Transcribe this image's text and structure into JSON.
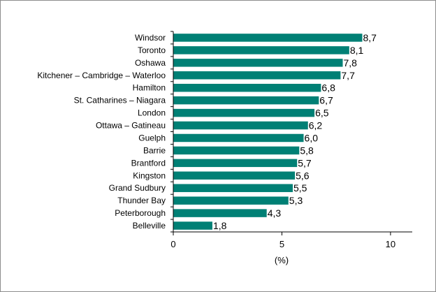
{
  "chart_data": {
    "type": "bar",
    "orientation": "horizontal",
    "categories": [
      "Windsor",
      "Toronto",
      "Oshawa",
      "Kitchener – Cambridge – Waterloo",
      "Hamilton",
      "St. Catharines – Niagara",
      "London",
      "Ottawa – Gatineau",
      "Guelph",
      "Barrie",
      "Brantford",
      "Kingston",
      "Grand Sudbury",
      "Thunder Bay",
      "Peterborough",
      "Belleville"
    ],
    "values": [
      8.7,
      8.1,
      7.8,
      7.7,
      6.8,
      6.7,
      6.5,
      6.2,
      6.0,
      5.8,
      5.7,
      5.6,
      5.5,
      5.3,
      4.3,
      1.8
    ],
    "value_labels": [
      "8,7",
      "8,1",
      "7,8",
      "7,7",
      "6,8",
      "6,7",
      "6,5",
      "6,2",
      "6,0",
      "5,8",
      "5,7",
      "5,6",
      "5,5",
      "5,3",
      "4,3",
      "1,8"
    ],
    "xticks": [
      0,
      5,
      10
    ],
    "xtick_labels": [
      "0",
      "5",
      "10"
    ],
    "xlabel": "(%)",
    "xlim": [
      0,
      11
    ],
    "grid": false,
    "bar_color": "#008075",
    "axis_color": "#000000"
  }
}
